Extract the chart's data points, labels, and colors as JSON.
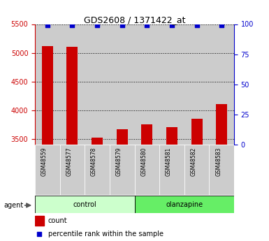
{
  "title": "GDS2608 / 1371422_at",
  "samples": [
    "GSM48559",
    "GSM48577",
    "GSM48578",
    "GSM48579",
    "GSM48580",
    "GSM48581",
    "GSM48582",
    "GSM48583"
  ],
  "counts": [
    5120,
    5110,
    3520,
    3670,
    3750,
    3700,
    3850,
    4110
  ],
  "percentile_ranks": [
    99,
    99,
    99,
    99,
    99,
    99,
    99,
    99
  ],
  "ylim_left": [
    3400,
    5500
  ],
  "ylim_right": [
    0,
    100
  ],
  "yticks_left": [
    3500,
    4000,
    4500,
    5000,
    5500
  ],
  "yticks_right": [
    0,
    25,
    50,
    75,
    100
  ],
  "groups": [
    {
      "label": "control",
      "indices": [
        0,
        1,
        2,
        3
      ],
      "color": "#ccffcc"
    },
    {
      "label": "olanzapine",
      "indices": [
        4,
        5,
        6,
        7
      ],
      "color": "#66ee66"
    }
  ],
  "bar_color": "#cc0000",
  "dot_color": "#0000cc",
  "left_axis_color": "#cc0000",
  "right_axis_color": "#0000cc",
  "col_bg_color": "#cccccc",
  "agent_label": "agent",
  "legend_count_label": "count",
  "legend_percentile_label": "percentile rank within the sample"
}
